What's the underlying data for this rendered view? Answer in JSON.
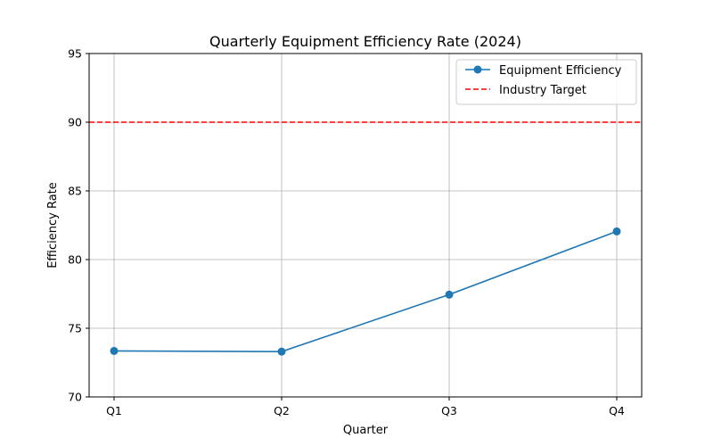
{
  "chart_data": {
    "type": "line",
    "title": "Quarterly Equipment Efficiency Rate (2024)",
    "xlabel": "Quarter",
    "ylabel": "Efficiency Rate",
    "categories": [
      "Q1",
      "Q2",
      "Q3",
      "Q4"
    ],
    "ylim": [
      70,
      95
    ],
    "yticks": [
      70,
      75,
      80,
      85,
      90,
      95
    ],
    "grid": true,
    "legend_position": "top-right",
    "series": [
      {
        "name": "Equipment Efficiency",
        "values": [
          73.35,
          73.3,
          77.45,
          82.05
        ],
        "color": "#1f77b4",
        "marker": "circle",
        "line_style": "solid"
      }
    ],
    "reference_lines": [
      {
        "name": "Industry Target",
        "value": 90,
        "color": "#ff0000",
        "line_style": "dashed"
      }
    ]
  }
}
